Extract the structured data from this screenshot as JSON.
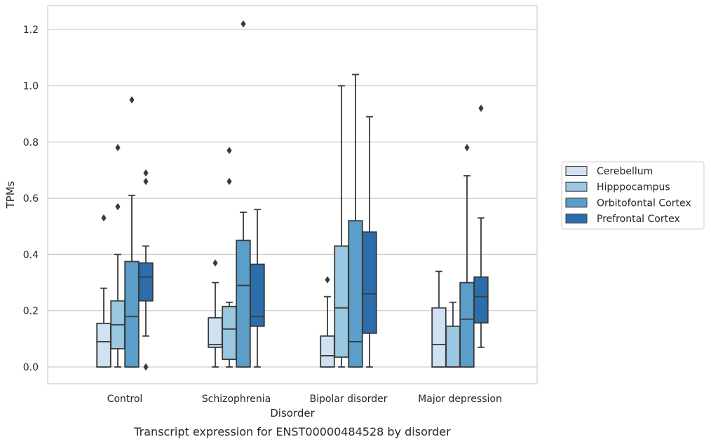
{
  "chart_data": {
    "type": "box",
    "caption": "Transcript expression for ENST00000484528 by disorder",
    "xlabel": "Disorder",
    "ylabel": "TPMs",
    "ylim": [
      -0.06,
      1.28
    ],
    "yticks": [
      "0.0",
      "0.2",
      "0.4",
      "0.6",
      "0.8",
      "1.0",
      "1.2"
    ],
    "grid": "horizontal",
    "legend_position": "right",
    "categories": [
      "Control",
      "Schizophrenia",
      "Bipolar disorder",
      "Major depression"
    ],
    "series": [
      {
        "name": "Cerebellum",
        "color": "#d0e1f2",
        "boxes": [
          {
            "whisker_low": 0.0,
            "q1": 0.0,
            "median": 0.09,
            "q3": 0.155,
            "whisker_high": 0.28,
            "outliers": [
              0.53
            ]
          },
          {
            "whisker_low": 0.0,
            "q1": 0.07,
            "median": 0.08,
            "q3": 0.175,
            "whisker_high": 0.3,
            "outliers": [
              0.37
            ]
          },
          {
            "whisker_low": 0.0,
            "q1": 0.0,
            "median": 0.04,
            "q3": 0.11,
            "whisker_high": 0.25,
            "outliers": [
              0.31
            ]
          },
          {
            "whisker_low": 0.0,
            "q1": 0.0,
            "median": 0.08,
            "q3": 0.21,
            "whisker_high": 0.34,
            "outliers": []
          }
        ]
      },
      {
        "name": "Hipppocampus",
        "color": "#9ac8e0",
        "boxes": [
          {
            "whisker_low": 0.0,
            "q1": 0.065,
            "median": 0.15,
            "q3": 0.235,
            "whisker_high": 0.4,
            "outliers": [
              0.57,
              0.78
            ]
          },
          {
            "whisker_low": 0.0,
            "q1": 0.027,
            "median": 0.135,
            "q3": 0.215,
            "whisker_high": 0.23,
            "outliers": [
              0.66,
              0.77
            ]
          },
          {
            "whisker_low": 0.0,
            "q1": 0.035,
            "median": 0.21,
            "q3": 0.43,
            "whisker_high": 1.0,
            "outliers": []
          },
          {
            "whisker_low": 0.0,
            "q1": 0.0,
            "median": 0.0,
            "q3": 0.145,
            "whisker_high": 0.23,
            "outliers": []
          }
        ]
      },
      {
        "name": "Orbitofontal Cortex",
        "color": "#5a9ec9",
        "boxes": [
          {
            "whisker_low": 0.0,
            "q1": 0.0,
            "median": 0.18,
            "q3": 0.375,
            "whisker_high": 0.61,
            "outliers": [
              0.95
            ]
          },
          {
            "whisker_low": 0.0,
            "q1": 0.0,
            "median": 0.29,
            "q3": 0.45,
            "whisker_high": 0.55,
            "outliers": [
              1.22
            ]
          },
          {
            "whisker_low": 0.0,
            "q1": 0.0,
            "median": 0.09,
            "q3": 0.52,
            "whisker_high": 1.04,
            "outliers": []
          },
          {
            "whisker_low": 0.0,
            "q1": 0.0,
            "median": 0.17,
            "q3": 0.3,
            "whisker_high": 0.68,
            "outliers": [
              0.78
            ]
          }
        ]
      },
      {
        "name": "Prefrontal Cortex",
        "color": "#2c6eac",
        "boxes": [
          {
            "whisker_low": 0.11,
            "q1": 0.235,
            "median": 0.32,
            "q3": 0.37,
            "whisker_high": 0.43,
            "outliers": [
              0.0,
              0.66,
              0.69
            ]
          },
          {
            "whisker_low": 0.0,
            "q1": 0.145,
            "median": 0.18,
            "q3": 0.365,
            "whisker_high": 0.56,
            "outliers": []
          },
          {
            "whisker_low": 0.0,
            "q1": 0.12,
            "median": 0.26,
            "q3": 0.48,
            "whisker_high": 0.89,
            "outliers": []
          },
          {
            "whisker_low": 0.07,
            "q1": 0.157,
            "median": 0.25,
            "q3": 0.32,
            "whisker_high": 0.53,
            "outliers": [
              0.92
            ]
          }
        ]
      }
    ]
  }
}
